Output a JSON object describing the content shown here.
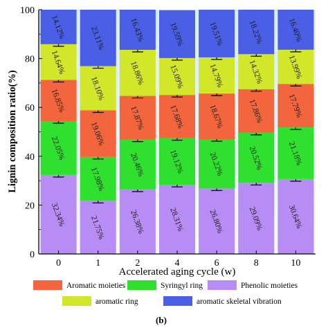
{
  "chart_data": {
    "type": "bar",
    "stacked": true,
    "orientation": "vertical",
    "categories": [
      "0",
      "1",
      "2",
      "4",
      "6",
      "8",
      "10"
    ],
    "series": [
      {
        "name": "Phenolic moieties",
        "color": "#b88cf5",
        "values": [
          32.34,
          21.75,
          26.38,
          28.31,
          26.8,
          29.09,
          30.64
        ]
      },
      {
        "name": "Syringyl ring",
        "color": "#2fe02f",
        "values": [
          22.05,
          17.98,
          20.46,
          19.12,
          20.22,
          20.52,
          21.18
        ]
      },
      {
        "name": "Aromatic moieties",
        "color": "#f3653c",
        "values": [
          16.85,
          19.06,
          17.87,
          17.68,
          18.67,
          17.86,
          17.79
        ]
      },
      {
        "name": "aromatic ring",
        "color": "#d2e62a",
        "values": [
          14.64,
          18.1,
          18.86,
          15.09,
          14.79,
          14.32,
          13.99
        ]
      },
      {
        "name": "aromatic skeletal vibration",
        "color": "#4a5ee6",
        "values": [
          14.12,
          23.11,
          16.43,
          19.59,
          19.51,
          18.22,
          16.4
        ]
      }
    ],
    "data_labels": [
      [
        "32.34%",
        "22.05%",
        "16.85%",
        "14.64%",
        "14.12%"
      ],
      [
        "21.75%",
        "17.98%",
        "19.06%",
        "18.10%",
        "23.11%"
      ],
      [
        "26.38%",
        "20.46%",
        "17.87%",
        "18.86%",
        "16.43%"
      ],
      [
        "28.31%",
        "19.12%",
        "17.68%",
        "15.09%",
        "19.59%"
      ],
      [
        "26.80%",
        "20.22%",
        "18.67%",
        "14.79%",
        "19.51%"
      ],
      [
        "29.09%",
        "20.52%",
        "17.86%",
        "14.32%",
        "18.22%"
      ],
      [
        "30.64%",
        "21.18%",
        "17.79%",
        "13.99%",
        "16.40%"
      ]
    ],
    "xlabel": "Accelerated aging cycle (w)",
    "ylabel": "Lignin composition ratio(%)",
    "ylim": [
      0,
      100
    ],
    "yticks": [
      "0",
      "20",
      "40",
      "60",
      "80",
      "100"
    ],
    "legend": {
      "placement": "bottom",
      "order": [
        "Aromatic moieties",
        "Syringyl ring",
        "Phenolic moieties",
        "aromatic ring",
        "aromatic skeletal vibration"
      ]
    },
    "panel_label": "(b)",
    "background_gradient": [
      "#d7eef6",
      "#f4f9fb"
    ]
  }
}
